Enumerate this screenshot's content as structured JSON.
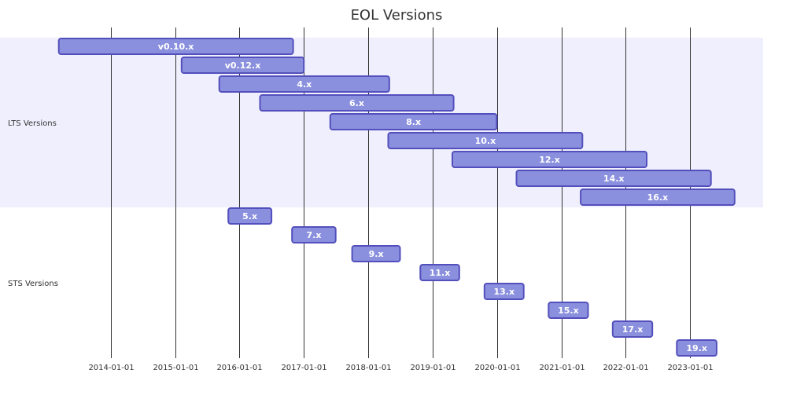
{
  "chart_data": {
    "type": "gantt",
    "title": "EOL Versions",
    "x_ticks": [
      "2014-01-01",
      "2015-01-01",
      "2016-01-01",
      "2017-01-01",
      "2018-01-01",
      "2019-01-01",
      "2020-01-01",
      "2021-01-01",
      "2022-01-01",
      "2023-01-01"
    ],
    "x_range": [
      "2013-03-01",
      "2023-12-31"
    ],
    "colors": {
      "bar_fill": "#8a90dd",
      "bar_stroke": "#534fbc",
      "section_band": "#efeffd",
      "text": "#333333",
      "bar_text": "#ffffff"
    },
    "sections": [
      {
        "name": "LTS Versions",
        "tasks": [
          {
            "label": "v0.10.x",
            "start": "2013-03-11",
            "end": "2016-10-31"
          },
          {
            "label": "v0.12.x",
            "start": "2015-02-06",
            "end": "2016-12-31"
          },
          {
            "label": "4.x",
            "start": "2015-09-08",
            "end": "2018-04-30"
          },
          {
            "label": "6.x",
            "start": "2016-04-26",
            "end": "2019-04-30"
          },
          {
            "label": "8.x",
            "start": "2017-05-30",
            "end": "2019-12-31"
          },
          {
            "label": "10.x",
            "start": "2018-04-24",
            "end": "2021-04-30"
          },
          {
            "label": "12.x",
            "start": "2019-04-23",
            "end": "2022-04-30"
          },
          {
            "label": "14.x",
            "start": "2020-04-21",
            "end": "2023-04-30"
          },
          {
            "label": "16.x",
            "start": "2021-04-20",
            "end": "2023-09-11"
          }
        ]
      },
      {
        "name": "STS Versions",
        "tasks": [
          {
            "label": "5.x",
            "start": "2015-10-29",
            "end": "2016-06-30"
          },
          {
            "label": "7.x",
            "start": "2016-10-25",
            "end": "2017-06-30"
          },
          {
            "label": "9.x",
            "start": "2017-10-01",
            "end": "2018-06-30"
          },
          {
            "label": "11.x",
            "start": "2018-10-23",
            "end": "2019-06-01"
          },
          {
            "label": "13.x",
            "start": "2019-10-22",
            "end": "2020-06-01"
          },
          {
            "label": "15.x",
            "start": "2020-10-20",
            "end": "2021-06-01"
          },
          {
            "label": "17.x",
            "start": "2021-10-19",
            "end": "2022-06-01"
          },
          {
            "label": "19.x",
            "start": "2022-10-18",
            "end": "2023-06-01"
          }
        ]
      }
    ]
  }
}
